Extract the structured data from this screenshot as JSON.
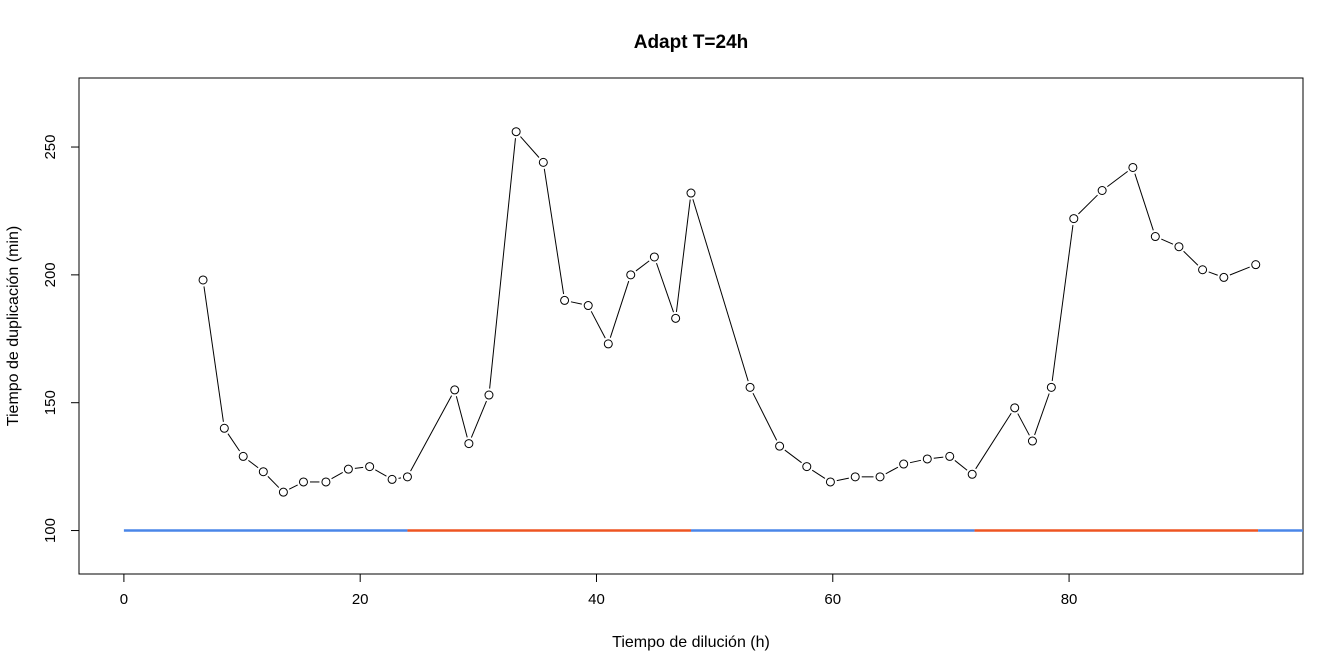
{
  "chart_data": {
    "type": "line",
    "title": "Adapt T=24h",
    "xlabel": "Tiempo de dilución (h)",
    "ylabel": "Tiempo de duplicación (min)",
    "xlim": [
      -3.8,
      99.8
    ],
    "ylim": [
      83,
      277
    ],
    "xticks": [
      0,
      20,
      40,
      60,
      80
    ],
    "yticks": [
      100,
      150,
      200,
      250
    ],
    "grid": false,
    "series": [
      {
        "style": "points-and-lines",
        "color": "#000000",
        "x": [
          6.7,
          8.5,
          10.1,
          11.8,
          13.5,
          15.2,
          17.1,
          19.0,
          20.8,
          22.7,
          24.0,
          28.0,
          29.2,
          30.9,
          33.2,
          35.5,
          37.3,
          39.3,
          41.0,
          42.9,
          44.9,
          46.7,
          48.0,
          53.0,
          55.5,
          57.8,
          59.8,
          61.9,
          64.0,
          66.0,
          68.0,
          69.9,
          71.8,
          75.4,
          76.9,
          78.5,
          80.4,
          82.8,
          85.4,
          87.3,
          89.3,
          91.3,
          93.1,
          95.8
        ],
        "y": [
          198,
          140,
          129,
          123,
          115,
          119,
          119,
          124,
          125,
          120,
          121,
          155,
          134,
          153,
          256,
          244,
          190,
          188,
          173,
          200,
          207,
          183,
          232,
          156,
          133,
          125,
          119,
          121,
          121,
          126,
          128,
          129,
          122,
          148,
          135,
          156,
          222,
          233,
          242,
          215,
          211,
          202,
          199,
          204
        ]
      }
    ],
    "reference_line": {
      "y": 100,
      "segments": [
        {
          "x": [
            0,
            24
          ],
          "color": "#4a86e8"
        },
        {
          "x": [
            24,
            48
          ],
          "color": "#ee5522"
        },
        {
          "x": [
            48,
            72
          ],
          "color": "#4a86e8"
        },
        {
          "x": [
            72,
            96
          ],
          "color": "#ee5522"
        },
        {
          "x": [
            96,
            99.8
          ],
          "color": "#4a86e8"
        }
      ]
    }
  }
}
